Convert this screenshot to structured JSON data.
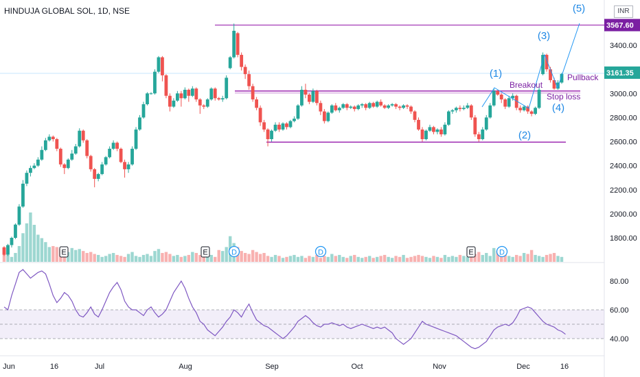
{
  "header": {
    "symbol_line": "HINDUJA GLOBAL SOL, 1D, NSE",
    "currency": "INR"
  },
  "colors": {
    "up": "#26a69a",
    "down": "#ef5350",
    "level": "#9c27b0",
    "rsi": "#7e57c2",
    "wave": "#2196f3"
  },
  "chart_data": {
    "type": "candlestick",
    "title": "HINDUJA GLOBAL SOL, 1D, NSE",
    "price_axis": {
      "ticks": [
        "3400.00",
        "3000.00",
        "2800.00",
        "2600.00",
        "2400.00",
        "2200.00",
        "2000.00",
        "1800.00"
      ],
      "range": [
        1640,
        3700
      ]
    },
    "price_labels": {
      "top_level": "3567.60",
      "last_price": "3161.35"
    },
    "time_axis": {
      "labels": [
        "Jun",
        "16",
        "Jul",
        "Aug",
        "Sep",
        "Oct",
        "Nov",
        "Dec",
        "16"
      ]
    },
    "levels": [
      {
        "name": "resistance",
        "value": 3567.6
      },
      {
        "name": "breakout",
        "value": 3020
      },
      {
        "name": "support",
        "value": 2595
      }
    ],
    "annotations": {
      "breakout": "Breakout",
      "stop_loss": "Stop loss",
      "pullback": "Pullback",
      "wave_labels": [
        "(1)",
        "(2)",
        "(3)",
        "(4)",
        "(5)"
      ],
      "event_markers": [
        "E",
        "E",
        "D",
        "D",
        "E",
        "D"
      ]
    },
    "candles": [
      {
        "o": 1720,
        "c": 1660,
        "h": 1730,
        "l": 1650
      },
      {
        "o": 1660,
        "c": 1740,
        "h": 1750,
        "l": 1650
      },
      {
        "o": 1740,
        "c": 1800,
        "h": 1810,
        "l": 1720
      },
      {
        "o": 1800,
        "c": 1910,
        "h": 1920,
        "l": 1790
      },
      {
        "o": 1910,
        "c": 2060,
        "h": 2080,
        "l": 1900
      },
      {
        "o": 2060,
        "c": 2250,
        "h": 2280,
        "l": 2050
      },
      {
        "o": 2250,
        "c": 2340,
        "h": 2360,
        "l": 2230
      },
      {
        "o": 2340,
        "c": 2380,
        "h": 2400,
        "l": 2310
      },
      {
        "o": 2380,
        "c": 2400,
        "h": 2420,
        "l": 2370
      },
      {
        "o": 2400,
        "c": 2450,
        "h": 2470,
        "l": 2390
      },
      {
        "o": 2450,
        "c": 2530,
        "h": 2560,
        "l": 2440
      },
      {
        "o": 2530,
        "c": 2610,
        "h": 2630,
        "l": 2520
      },
      {
        "o": 2610,
        "c": 2640,
        "h": 2660,
        "l": 2600
      },
      {
        "o": 2640,
        "c": 2620,
        "h": 2650,
        "l": 2600
      },
      {
        "o": 2620,
        "c": 2540,
        "h": 2630,
        "l": 2520
      },
      {
        "o": 2540,
        "c": 2410,
        "h": 2550,
        "l": 2390
      },
      {
        "o": 2410,
        "c": 2380,
        "h": 2420,
        "l": 2330
      },
      {
        "o": 2380,
        "c": 2450,
        "h": 2460,
        "l": 2370
      },
      {
        "o": 2450,
        "c": 2500,
        "h": 2530,
        "l": 2440
      },
      {
        "o": 2500,
        "c": 2560,
        "h": 2580,
        "l": 2490
      },
      {
        "o": 2560,
        "c": 2690,
        "h": 2710,
        "l": 2550
      },
      {
        "o": 2690,
        "c": 2610,
        "h": 2700,
        "l": 2590
      },
      {
        "o": 2610,
        "c": 2480,
        "h": 2620,
        "l": 2460
      },
      {
        "o": 2480,
        "c": 2370,
        "h": 2490,
        "l": 2350
      },
      {
        "o": 2370,
        "c": 2290,
        "h": 2380,
        "l": 2220
      },
      {
        "o": 2290,
        "c": 2330,
        "h": 2340,
        "l": 2270
      },
      {
        "o": 2330,
        "c": 2410,
        "h": 2430,
        "l": 2320
      },
      {
        "o": 2410,
        "c": 2470,
        "h": 2480,
        "l": 2400
      },
      {
        "o": 2470,
        "c": 2540,
        "h": 2560,
        "l": 2460
      },
      {
        "o": 2540,
        "c": 2590,
        "h": 2610,
        "l": 2530
      },
      {
        "o": 2590,
        "c": 2540,
        "h": 2600,
        "l": 2520
      },
      {
        "o": 2540,
        "c": 2430,
        "h": 2550,
        "l": 2420
      },
      {
        "o": 2430,
        "c": 2370,
        "h": 2450,
        "l": 2300
      },
      {
        "o": 2370,
        "c": 2410,
        "h": 2430,
        "l": 2340
      },
      {
        "o": 2410,
        "c": 2540,
        "h": 2560,
        "l": 2400
      },
      {
        "o": 2540,
        "c": 2700,
        "h": 2720,
        "l": 2530
      },
      {
        "o": 2700,
        "c": 2800,
        "h": 2820,
        "l": 2690
      },
      {
        "o": 2800,
        "c": 2910,
        "h": 2930,
        "l": 2790
      },
      {
        "o": 2910,
        "c": 3000,
        "h": 3010,
        "l": 2900
      },
      {
        "o": 3000,
        "c": 3000,
        "h": 3010,
        "l": 2990
      },
      {
        "o": 3000,
        "c": 3180,
        "h": 3200,
        "l": 2990
      },
      {
        "o": 3180,
        "c": 3300,
        "h": 3310,
        "l": 3170
      },
      {
        "o": 3300,
        "c": 3150,
        "h": 3310,
        "l": 3100
      },
      {
        "o": 3150,
        "c": 2980,
        "h": 3160,
        "l": 2960
      },
      {
        "o": 2980,
        "c": 2890,
        "h": 3000,
        "l": 2850
      },
      {
        "o": 2890,
        "c": 2940,
        "h": 2960,
        "l": 2880
      },
      {
        "o": 2940,
        "c": 3000,
        "h": 3020,
        "l": 2930
      },
      {
        "o": 3000,
        "c": 2960,
        "h": 3020,
        "l": 2890
      },
      {
        "o": 2960,
        "c": 3030,
        "h": 3050,
        "l": 2950
      },
      {
        "o": 3030,
        "c": 2980,
        "h": 3040,
        "l": 2930
      },
      {
        "o": 2980,
        "c": 3040,
        "h": 3060,
        "l": 2970
      },
      {
        "o": 3040,
        "c": 2950,
        "h": 3050,
        "l": 2930
      },
      {
        "o": 2950,
        "c": 2900,
        "h": 2960,
        "l": 2830
      },
      {
        "o": 2900,
        "c": 2890,
        "h": 2910,
        "l": 2870
      },
      {
        "o": 2890,
        "c": 2950,
        "h": 2960,
        "l": 2880
      },
      {
        "o": 2950,
        "c": 3040,
        "h": 3050,
        "l": 2940
      },
      {
        "o": 3040,
        "c": 2960,
        "h": 3050,
        "l": 2940
      },
      {
        "o": 2960,
        "c": 2950,
        "h": 2970,
        "l": 2940
      },
      {
        "o": 2950,
        "c": 2960,
        "h": 2980,
        "l": 2930
      },
      {
        "o": 2960,
        "c": 3130,
        "h": 3150,
        "l": 2950
      },
      {
        "o": 3210,
        "c": 3300,
        "h": 3310,
        "l": 3200
      },
      {
        "o": 3300,
        "c": 3520,
        "h": 3580,
        "l": 3290
      },
      {
        "o": 3500,
        "c": 3320,
        "h": 3510,
        "l": 3300
      },
      {
        "o": 3320,
        "c": 3220,
        "h": 3340,
        "l": 3190
      },
      {
        "o": 3220,
        "c": 3160,
        "h": 3240,
        "l": 3120
      },
      {
        "o": 3160,
        "c": 3060,
        "h": 3190,
        "l": 3030
      },
      {
        "o": 3060,
        "c": 2950,
        "h": 3080,
        "l": 2930
      },
      {
        "o": 2950,
        "c": 2880,
        "h": 2970,
        "l": 2860
      },
      {
        "o": 2880,
        "c": 2760,
        "h": 2900,
        "l": 2730
      },
      {
        "o": 2760,
        "c": 2700,
        "h": 2780,
        "l": 2680
      },
      {
        "o": 2700,
        "c": 2620,
        "h": 2710,
        "l": 2560
      },
      {
        "o": 2620,
        "c": 2690,
        "h": 2700,
        "l": 2600
      },
      {
        "o": 2690,
        "c": 2740,
        "h": 2760,
        "l": 2680
      },
      {
        "o": 2740,
        "c": 2700,
        "h": 2760,
        "l": 2680
      },
      {
        "o": 2700,
        "c": 2750,
        "h": 2760,
        "l": 2690
      },
      {
        "o": 2750,
        "c": 2720,
        "h": 2760,
        "l": 2700
      },
      {
        "o": 2720,
        "c": 2770,
        "h": 2780,
        "l": 2710
      },
      {
        "o": 2770,
        "c": 2790,
        "h": 2810,
        "l": 2760
      },
      {
        "o": 2790,
        "c": 2900,
        "h": 2910,
        "l": 2780
      },
      {
        "o": 2900,
        "c": 3030,
        "h": 3060,
        "l": 2890
      },
      {
        "o": 3030,
        "c": 2990,
        "h": 3080,
        "l": 2960
      },
      {
        "o": 2990,
        "c": 2930,
        "h": 3000,
        "l": 2910
      },
      {
        "o": 2930,
        "c": 3020,
        "h": 3040,
        "l": 2920
      },
      {
        "o": 3020,
        "c": 2920,
        "h": 3030,
        "l": 2900
      },
      {
        "o": 2920,
        "c": 2850,
        "h": 2940,
        "l": 2820
      },
      {
        "o": 2850,
        "c": 2770,
        "h": 2870,
        "l": 2750
      },
      {
        "o": 2770,
        "c": 2840,
        "h": 2850,
        "l": 2760
      },
      {
        "o": 2840,
        "c": 2900,
        "h": 2910,
        "l": 2830
      },
      {
        "o": 2900,
        "c": 2860,
        "h": 2920,
        "l": 2850
      },
      {
        "o": 2860,
        "c": 2880,
        "h": 2890,
        "l": 2840
      },
      {
        "o": 2880,
        "c": 2910,
        "h": 2920,
        "l": 2870
      },
      {
        "o": 2910,
        "c": 2880,
        "h": 2920,
        "l": 2860
      },
      {
        "o": 2880,
        "c": 2890,
        "h": 2900,
        "l": 2870
      },
      {
        "o": 2890,
        "c": 2870,
        "h": 2900,
        "l": 2850
      },
      {
        "o": 2870,
        "c": 2900,
        "h": 2910,
        "l": 2860
      },
      {
        "o": 2900,
        "c": 2910,
        "h": 2920,
        "l": 2880
      },
      {
        "o": 2910,
        "c": 2880,
        "h": 2920,
        "l": 2860
      },
      {
        "o": 2880,
        "c": 2920,
        "h": 2930,
        "l": 2870
      },
      {
        "o": 2920,
        "c": 2890,
        "h": 2930,
        "l": 2880
      },
      {
        "o": 2890,
        "c": 2930,
        "h": 2940,
        "l": 2880
      },
      {
        "o": 2930,
        "c": 2900,
        "h": 2950,
        "l": 2890
      },
      {
        "o": 2900,
        "c": 2880,
        "h": 2910,
        "l": 2870
      },
      {
        "o": 2880,
        "c": 2900,
        "h": 2910,
        "l": 2870
      },
      {
        "o": 2900,
        "c": 2910,
        "h": 2920,
        "l": 2890
      },
      {
        "o": 2910,
        "c": 2890,
        "h": 2920,
        "l": 2870
      },
      {
        "o": 2890,
        "c": 2880,
        "h": 2900,
        "l": 2860
      },
      {
        "o": 2880,
        "c": 2900,
        "h": 2910,
        "l": 2870
      },
      {
        "o": 2900,
        "c": 2890,
        "h": 2910,
        "l": 2870
      },
      {
        "o": 2890,
        "c": 2850,
        "h": 2900,
        "l": 2830
      },
      {
        "o": 2850,
        "c": 2780,
        "h": 2860,
        "l": 2760
      },
      {
        "o": 2780,
        "c": 2700,
        "h": 2800,
        "l": 2690
      },
      {
        "o": 2700,
        "c": 2620,
        "h": 2720,
        "l": 2600
      },
      {
        "o": 2620,
        "c": 2690,
        "h": 2700,
        "l": 2610
      },
      {
        "o": 2690,
        "c": 2720,
        "h": 2740,
        "l": 2680
      },
      {
        "o": 2720,
        "c": 2680,
        "h": 2730,
        "l": 2660
      },
      {
        "o": 2680,
        "c": 2700,
        "h": 2710,
        "l": 2660
      },
      {
        "o": 2700,
        "c": 2660,
        "h": 2720,
        "l": 2640
      },
      {
        "o": 2660,
        "c": 2740,
        "h": 2760,
        "l": 2650
      },
      {
        "o": 2740,
        "c": 2850,
        "h": 2860,
        "l": 2730
      },
      {
        "o": 2850,
        "c": 2860,
        "h": 2870,
        "l": 2830
      },
      {
        "o": 2860,
        "c": 2880,
        "h": 2890,
        "l": 2840
      },
      {
        "o": 2880,
        "c": 2870,
        "h": 2900,
        "l": 2850
      },
      {
        "o": 2870,
        "c": 2880,
        "h": 2900,
        "l": 2860
      },
      {
        "o": 2880,
        "c": 2900,
        "h": 2920,
        "l": 2870
      },
      {
        "o": 2900,
        "c": 2800,
        "h": 2910,
        "l": 2780
      },
      {
        "o": 2800,
        "c": 2660,
        "h": 2820,
        "l": 2640
      },
      {
        "o": 2660,
        "c": 2620,
        "h": 2680,
        "l": 2600
      },
      {
        "o": 2620,
        "c": 2700,
        "h": 2720,
        "l": 2610
      },
      {
        "o": 2700,
        "c": 2800,
        "h": 2820,
        "l": 2690
      },
      {
        "o": 2800,
        "c": 2900,
        "h": 2920,
        "l": 2790
      },
      {
        "o": 2900,
        "c": 3020,
        "h": 3040,
        "l": 2890
      },
      {
        "o": 3020,
        "c": 2990,
        "h": 3030,
        "l": 2980
      },
      {
        "o": 2990,
        "c": 2950,
        "h": 3000,
        "l": 2920
      },
      {
        "o": 2950,
        "c": 2890,
        "h": 2960,
        "l": 2870
      },
      {
        "o": 2890,
        "c": 2960,
        "h": 2980,
        "l": 2880
      },
      {
        "o": 2960,
        "c": 2980,
        "h": 3000,
        "l": 2940
      },
      {
        "o": 2980,
        "c": 2880,
        "h": 2990,
        "l": 2860
      },
      {
        "o": 2880,
        "c": 2860,
        "h": 2900,
        "l": 2840
      },
      {
        "o": 2860,
        "c": 2890,
        "h": 2900,
        "l": 2850
      },
      {
        "o": 2890,
        "c": 2850,
        "h": 2900,
        "l": 2830
      },
      {
        "o": 2850,
        "c": 2830,
        "h": 2860,
        "l": 2810
      },
      {
        "o": 2830,
        "c": 2880,
        "h": 2890,
        "l": 2820
      },
      {
        "o": 2880,
        "c": 3030,
        "h": 3050,
        "l": 2870
      },
      {
        "o": 3160,
        "c": 3320,
        "h": 3340,
        "l": 3150
      },
      {
        "o": 3320,
        "c": 3200,
        "h": 3330,
        "l": 3180
      },
      {
        "o": 3200,
        "c": 3110,
        "h": 3220,
        "l": 3090
      },
      {
        "o": 3110,
        "c": 3040,
        "h": 3130,
        "l": 3030
      },
      {
        "o": 3040,
        "c": 3090,
        "h": 3110,
        "l": 3030
      },
      {
        "o": 3090,
        "c": 3161.35,
        "h": 3170,
        "l": 3080
      }
    ],
    "volume": [
      30,
      14,
      10,
      18,
      32,
      58,
      78,
      100,
      75,
      55,
      48,
      40,
      30,
      32,
      30,
      26,
      22,
      20,
      28,
      24,
      26,
      22,
      18,
      20,
      16,
      14,
      10,
      12,
      16,
      18,
      14,
      12,
      10,
      16,
      20,
      12,
      10,
      14,
      16,
      12,
      22,
      26,
      18,
      20,
      16,
      12,
      14,
      10,
      12,
      14,
      20,
      18,
      14,
      16,
      12,
      14,
      10,
      24,
      22,
      30,
      52,
      38,
      30,
      22,
      18,
      16,
      24,
      20,
      16,
      18,
      12,
      10,
      14,
      12,
      8,
      10,
      12,
      14,
      10,
      12,
      8,
      12,
      10,
      14,
      8,
      12,
      10,
      16,
      12,
      14,
      10,
      8,
      12,
      14,
      10,
      8,
      10,
      12,
      8,
      10,
      12,
      14,
      10,
      8,
      12,
      10,
      14,
      8,
      10,
      12,
      14,
      12,
      10,
      8,
      12,
      10,
      8,
      14,
      10,
      12,
      10,
      14,
      12,
      10,
      12,
      16,
      20,
      14,
      18,
      12,
      28,
      22,
      26,
      14,
      12,
      10,
      14,
      12,
      18,
      16,
      24,
      14,
      12,
      10,
      14,
      16,
      18,
      12,
      10,
      12
    ],
    "rsi": {
      "ticks": [
        "80.00",
        "60.00",
        "40.00"
      ],
      "band": [
        40,
        60
      ],
      "values": [
        62,
        60,
        70,
        78,
        86,
        88,
        85,
        82,
        84,
        86,
        87,
        85,
        78,
        70,
        65,
        68,
        72,
        70,
        66,
        60,
        56,
        55,
        58,
        62,
        57,
        55,
        60,
        66,
        72,
        76,
        79,
        74,
        66,
        62,
        60,
        60,
        58,
        56,
        60,
        62,
        58,
        55,
        57,
        60,
        66,
        72,
        76,
        80,
        75,
        68,
        62,
        58,
        52,
        50,
        46,
        44,
        42,
        45,
        48,
        52,
        55,
        60,
        58,
        55,
        60,
        64,
        58,
        53,
        51,
        49,
        48,
        46,
        44,
        42,
        40,
        42,
        45,
        48,
        52,
        54,
        56,
        54,
        51,
        49,
        48,
        50,
        50,
        51,
        50,
        49,
        50,
        48,
        47,
        48,
        49,
        50,
        49,
        48,
        47,
        48,
        47,
        48,
        46,
        44,
        40,
        38,
        36,
        38,
        40,
        44,
        48,
        52,
        50,
        49,
        48,
        47,
        46,
        45,
        44,
        43,
        42,
        40,
        38,
        36,
        34,
        33,
        34,
        36,
        38,
        42,
        46,
        48,
        49,
        50,
        49,
        51,
        55,
        60,
        61,
        62,
        61,
        58,
        55,
        52,
        50,
        49,
        48,
        46,
        45,
        43
      ]
    }
  }
}
